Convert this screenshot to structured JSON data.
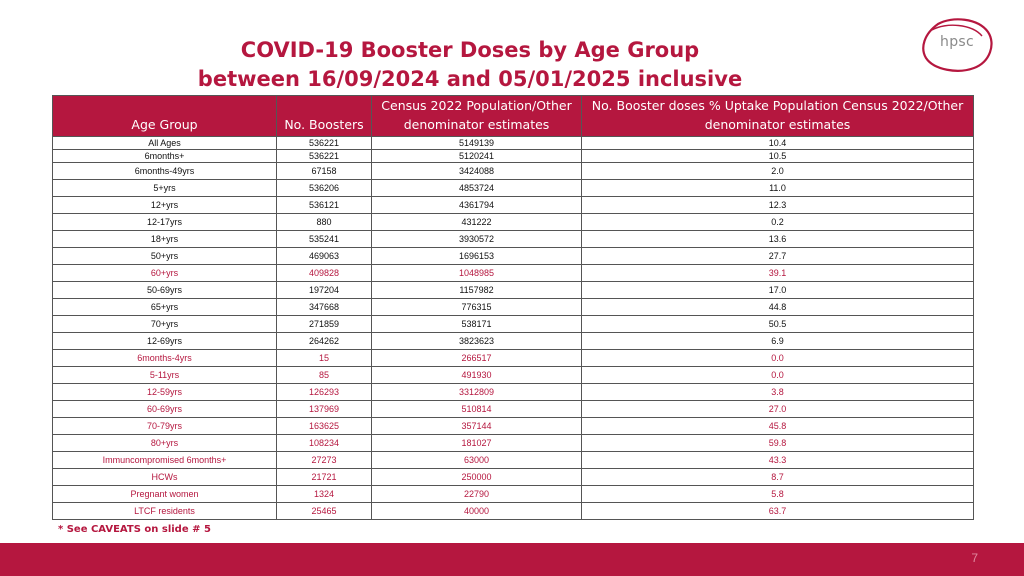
{
  "title": {
    "line1": "COVID-19 Booster Doses by Age Group",
    "line2": "between 16/09/2024 and 05/01/2025 inclusive"
  },
  "logo": {
    "text": "hpsc",
    "accent": "#b5173f"
  },
  "table": {
    "headers": {
      "age_group": "Age Group",
      "no_boosters": "No. Boosters",
      "population": "Census 2022 Population/Other denominator estimates",
      "uptake": "No. Booster doses % Uptake Population Census 2022/Other denominator estimates"
    },
    "rows": [
      {
        "age_group": "All Ages",
        "boosters": "536221",
        "population": "5149139",
        "uptake": "10.4",
        "highlight": false
      },
      {
        "age_group": "6months+",
        "boosters": "536221",
        "population": "5120241",
        "uptake": "10.5",
        "highlight": false
      },
      {
        "age_group": "6months-49yrs",
        "boosters": "67158",
        "population": "3424088",
        "uptake": "2.0",
        "highlight": false
      },
      {
        "age_group": "5+yrs",
        "boosters": "536206",
        "population": "4853724",
        "uptake": "11.0",
        "highlight": false
      },
      {
        "age_group": "12+yrs",
        "boosters": "536121",
        "population": "4361794",
        "uptake": "12.3",
        "highlight": false
      },
      {
        "age_group": "12-17yrs",
        "boosters": "880",
        "population": "431222",
        "uptake": "0.2",
        "highlight": false
      },
      {
        "age_group": "18+yrs",
        "boosters": "535241",
        "population": "3930572",
        "uptake": "13.6",
        "highlight": false
      },
      {
        "age_group": "50+yrs",
        "boosters": "469063",
        "population": "1696153",
        "uptake": "27.7",
        "highlight": false
      },
      {
        "age_group": "60+yrs",
        "boosters": "409828",
        "population": "1048985",
        "uptake": "39.1",
        "highlight": true
      },
      {
        "age_group": "50-69yrs",
        "boosters": "197204",
        "population": "1157982",
        "uptake": "17.0",
        "highlight": false
      },
      {
        "age_group": "65+yrs",
        "boosters": "347668",
        "population": "776315",
        "uptake": "44.8",
        "highlight": false
      },
      {
        "age_group": "70+yrs",
        "boosters": "271859",
        "population": "538171",
        "uptake": "50.5",
        "highlight": false
      },
      {
        "age_group": "12-69yrs",
        "boosters": "264262",
        "population": "3823623",
        "uptake": "6.9",
        "highlight": false
      },
      {
        "age_group": "6months-4yrs",
        "boosters": "15",
        "population": "266517",
        "uptake": "0.0",
        "highlight": true
      },
      {
        "age_group": "5-11yrs",
        "boosters": "85",
        "population": "491930",
        "uptake": "0.0",
        "highlight": true
      },
      {
        "age_group": "12-59yrs",
        "boosters": "126293",
        "population": "3312809",
        "uptake": "3.8",
        "highlight": true
      },
      {
        "age_group": "60-69yrs",
        "boosters": "137969",
        "population": "510814",
        "uptake": "27.0",
        "highlight": true
      },
      {
        "age_group": "70-79yrs",
        "boosters": "163625",
        "population": "357144",
        "uptake": "45.8",
        "highlight": true
      },
      {
        "age_group": "80+yrs",
        "boosters": "108234",
        "population": "181027",
        "uptake": "59.8",
        "highlight": true
      },
      {
        "age_group": "Immuncompromised 6months+",
        "boosters": "27273",
        "population": "63000",
        "uptake": "43.3",
        "highlight": true
      },
      {
        "age_group": "HCWs",
        "boosters": "21721",
        "population": "250000",
        "uptake": "8.7",
        "highlight": true
      },
      {
        "age_group": "Pregnant women",
        "boosters": "1324",
        "population": "22790",
        "uptake": "5.8",
        "highlight": true
      },
      {
        "age_group": "LTCF residents",
        "boosters": "25465",
        "population": "40000",
        "uptake": "63.7",
        "highlight": true
      }
    ]
  },
  "caveat": "* See CAVEATS on slide # 5",
  "footer": {
    "page_number": "7"
  },
  "colors": {
    "accent": "#b5173f",
    "footer": "#b5173f"
  }
}
